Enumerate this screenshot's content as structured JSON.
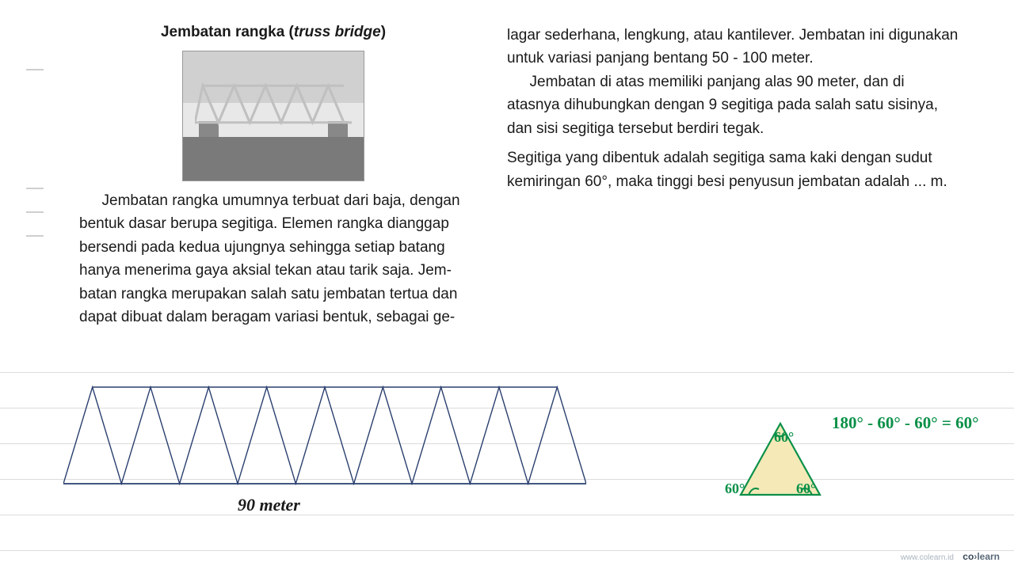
{
  "title_main": "Jembatan rangka (",
  "title_em": "truss bridge",
  "title_close": ")",
  "left_para": "Jembatan rangka umumnya terbuat dari baja, dengan bentuk dasar berupa segitiga. Elemen rangka dianggap bersendi pada kedua ujungnya sehingga setiap batang hanya menerima gaya aksial tekan atau tarik saja. Jem-batan rangka merupakan salah satu jembatan tertua dan dapat dibuat dalam beragam variasi bentuk, sebagai ge-",
  "right_para1": "lagar sederhana, lengkung, atau kantilever. Jembatan ini digunakan untuk variasi panjang bentang 50 - 100 meter.",
  "right_para2": "Jembatan di atas memiliki panjang alas 90 meter, dan di atasnya dihubungkan dengan 9 segitiga pada salah satu sisinya, dan sisi segitiga tersebut berdiri tegak.",
  "right_para3": "Segitiga yang dibentuk adalah segitiga sama kaki dengan sudut kemiringan 60°, maka tinggi besi penyusun jembatan adalah ... m.",
  "diagram": {
    "base_length_label": "90 meter",
    "triangle_count": 9,
    "stroke_color": "#2a3f6f",
    "stroke_width": 1.4
  },
  "annotation": {
    "color": "#0a9048",
    "fill": "#f5e9b8",
    "angles": {
      "top": "60°",
      "left": "60°",
      "right": "60°"
    },
    "calc": "180° - 60° - 60° = 60°"
  },
  "ruling_color": "#dcdcdc",
  "footer_url": "www.colearn.id",
  "footer_brand_a": "co",
  "footer_brand_b": "learn"
}
